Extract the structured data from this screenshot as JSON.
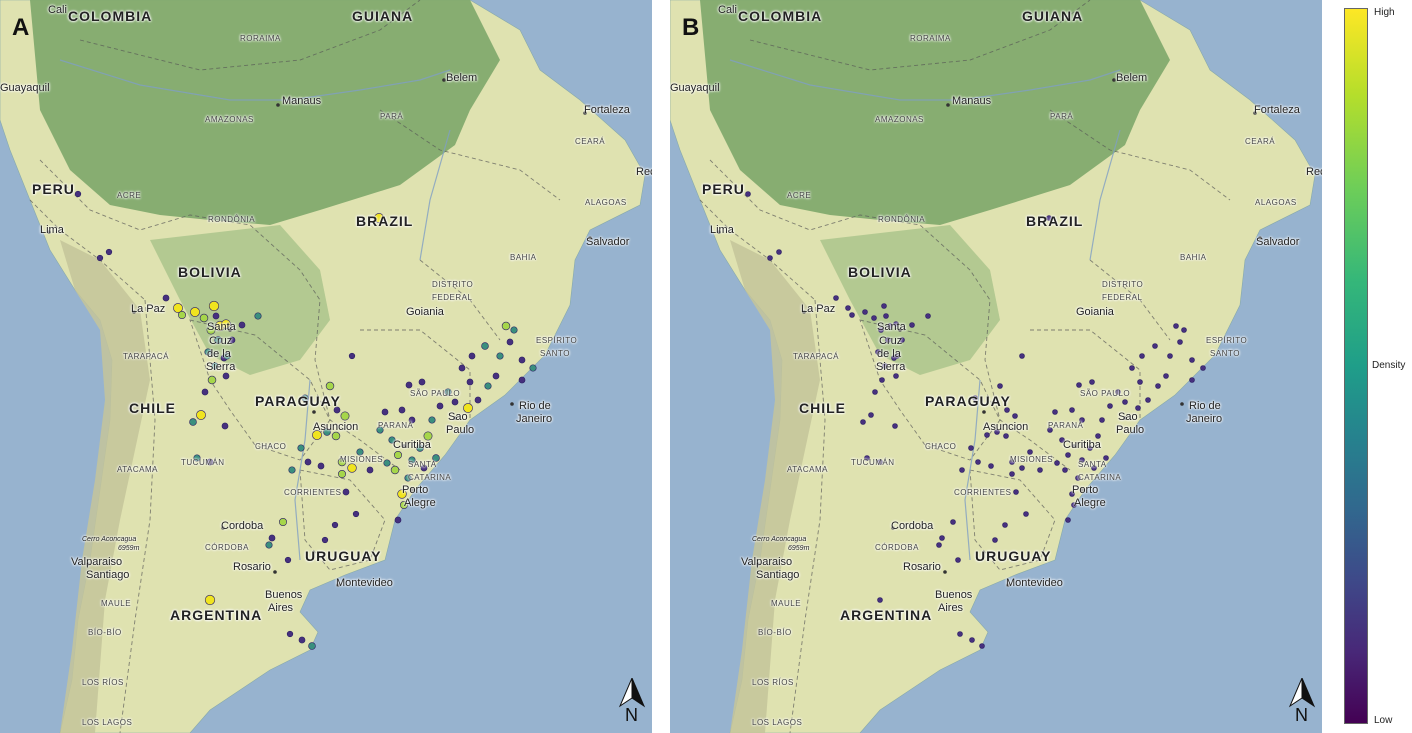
{
  "panels": [
    {
      "id": "A",
      "letter": "A",
      "point_style": "density"
    },
    {
      "id": "B",
      "letter": "B",
      "point_style": "uniform"
    }
  ],
  "map_labels": {
    "countries": [
      "COLOMBIA",
      "GUIANA",
      "PERU",
      "BRAZIL",
      "BOLIVIA",
      "PARAGUAY",
      "CHILE",
      "URUGUAY",
      "ARGENTINA"
    ],
    "states": [
      "RORAIMA",
      "AMAZONAS",
      "PARÁ",
      "ACRE",
      "RONDÔNIA",
      "CEARÁ",
      "ALAGOAS",
      "BAHIA",
      "DISTRITO",
      "FEDERAL",
      "ESPÍRITO",
      "SANTO",
      "TARAPACÁ",
      "SÃO PAULO",
      "PARANÁ",
      "CHACO",
      "ATACAMA",
      "TUCUMÁN",
      "MISIONES",
      "SANTA",
      "CATARINA",
      "CORRIENTES",
      "CÓRDOBA",
      "MAULE",
      "BÍO-BÍO",
      "LOS RÍOS",
      "LOS LAGOS"
    ],
    "cities": [
      "Cali",
      "Guayaquil",
      "Manaus",
      "Belem",
      "Fortaleza",
      "Rec",
      "Lima",
      "Salvador",
      "La Paz",
      "Goiania",
      "Santa",
      "Cruz",
      "de la",
      "Sierra",
      "Asuncion",
      "Curitiba",
      "Sao",
      "Paulo",
      "Rio de",
      "Janeiro",
      "Porto",
      "Alegre",
      "Cordoba",
      "Valparaiso",
      "Santiago",
      "Rosario",
      "Buenos",
      "Aires",
      "Montevideo"
    ],
    "peak_name": "Cerro Aconcagua",
    "peak_elev": "6959m"
  },
  "north_arrow": {
    "label": "N"
  },
  "legend": {
    "title": "Density",
    "high": "High",
    "low": "Low"
  },
  "colors": {
    "ocean": "#97b3cf",
    "forest": "#7fa86b",
    "forest_light": "#a8c38a",
    "lowland": "#dfe2b0",
    "dry": "#e7e3bc",
    "andes": "#c4c49a",
    "point_low": "#46307e",
    "point_mid": "#3a8f7e",
    "point_high": "#f0e41f"
  }
}
